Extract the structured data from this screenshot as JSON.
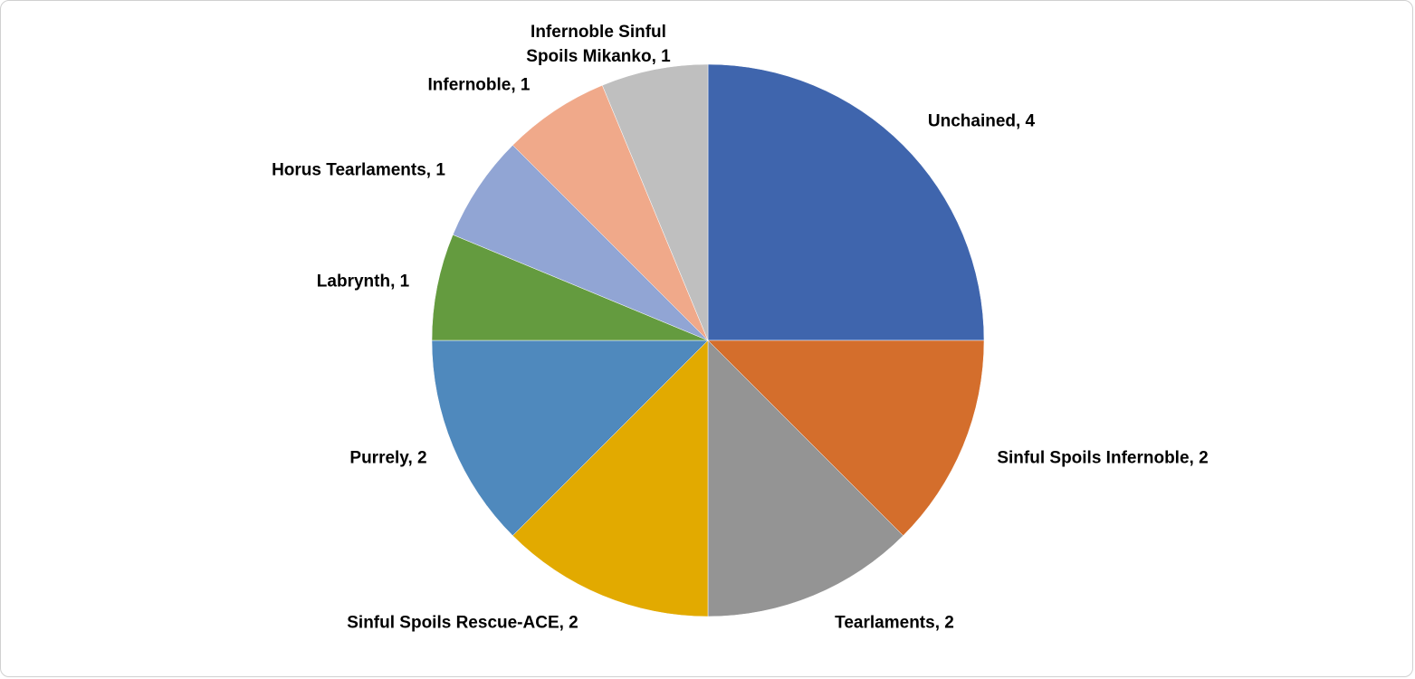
{
  "chart_data": {
    "type": "pie",
    "values": [
      4,
      2,
      2,
      2,
      2,
      1,
      1,
      1,
      1
    ],
    "value_labels": [
      "Unchained, 4",
      "Sinful Spoils Infernoble, 2",
      "Tearlaments, 2",
      "Sinful Spoils Rescue-ACE, 2",
      "Purrely, 2",
      "Labrynth, 1",
      "Horus Tearlaments, 1",
      "Infernoble, 1",
      "Infernoble Sinful Spoils Mikanko, 1"
    ],
    "colors": [
      "#3f65ad",
      "#d46e2c",
      "#949494",
      "#e2aa00",
      "#4f89bd",
      "#649b3f",
      "#91a5d4",
      "#f0a98a",
      "#bfbfbf"
    ]
  }
}
